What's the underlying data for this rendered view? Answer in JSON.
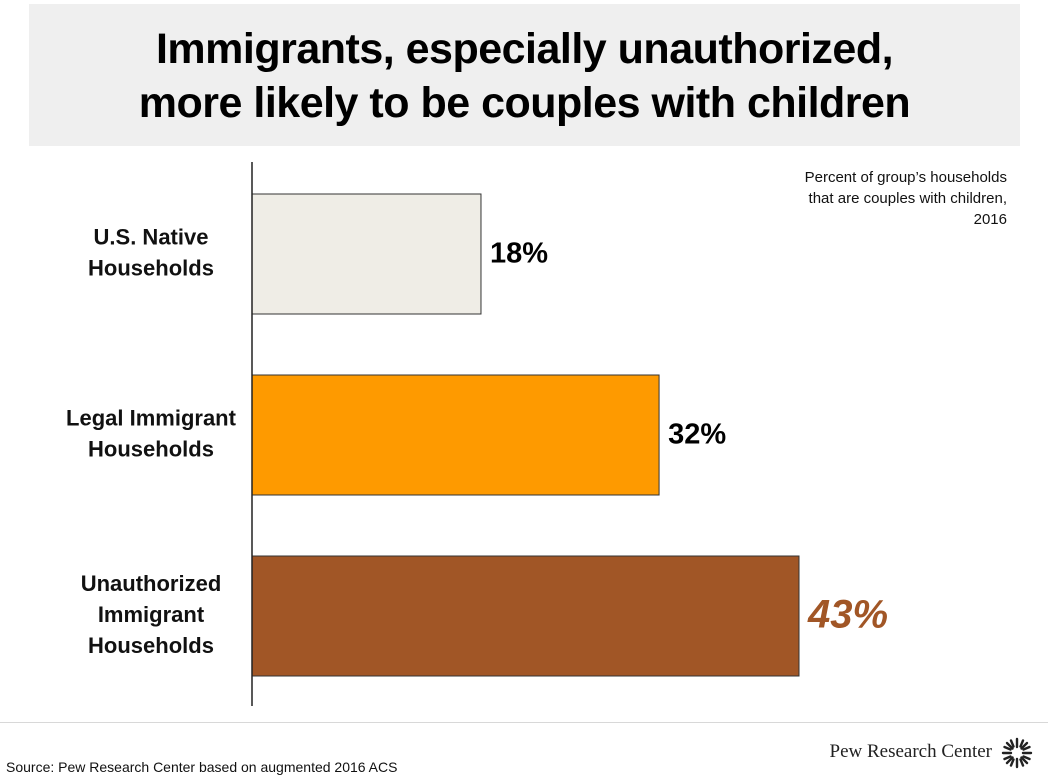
{
  "header": {
    "title_line1": "Immigrants, especially unauthorized,",
    "title_line2": "more likely to be couples with children"
  },
  "note": {
    "line1": "Percent of group’s households",
    "line2": "that are couples with children,",
    "line3": "2016"
  },
  "chart_data": {
    "type": "bar",
    "orientation": "horizontal",
    "title": "Immigrants, especially unauthorized, more likely to be couples with children",
    "subtitle": "Percent of group’s households that are couples with children, 2016",
    "categories": [
      [
        "U.S. Native",
        "Households"
      ],
      [
        "Legal Immigrant",
        "Households"
      ],
      [
        "Unauthorized",
        "Immigrant",
        "Households"
      ]
    ],
    "values": [
      18,
      32,
      43
    ],
    "value_labels": [
      "18%",
      "32%",
      "43%"
    ],
    "colors": [
      "#efede6",
      "#fe9a00",
      "#a15626"
    ],
    "label_colors": [
      "#000000",
      "#000000",
      "#a15626"
    ],
    "label_italic": [
      false,
      false,
      true
    ],
    "xlim": [
      0,
      43
    ],
    "xlabel": "",
    "ylabel": "",
    "grid": false,
    "legend": "none"
  },
  "footer": {
    "source": "Source: Pew Research Center based on augmented 2016 ACS",
    "brand": "Pew Research Center"
  },
  "icons": {
    "brand_icon": "pew-sunburst-icon"
  }
}
